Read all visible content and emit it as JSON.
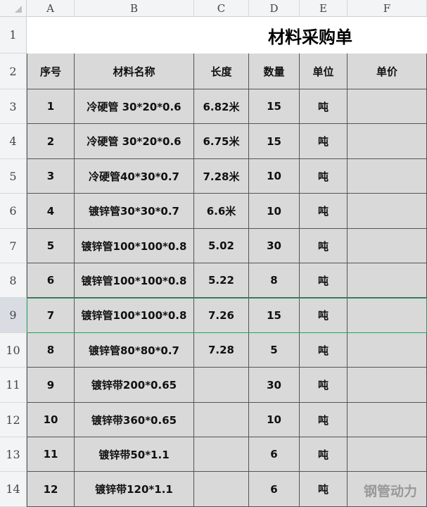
{
  "columns": [
    "A",
    "B",
    "C",
    "D",
    "E",
    "F"
  ],
  "rows": [
    "1",
    "2",
    "3",
    "4",
    "5",
    "6",
    "7",
    "8",
    "9",
    "10",
    "11",
    "12",
    "13",
    "14"
  ],
  "title": "材料采购单",
  "headers": [
    "序号",
    "材料名称",
    "长度",
    "数量",
    "单位",
    "单价"
  ],
  "data": [
    [
      "1",
      "冷硬管 30*20*0.6",
      "6.82米",
      "15",
      "吨",
      ""
    ],
    [
      "2",
      "冷硬管 30*20*0.6",
      "6.75米",
      "15",
      "吨",
      ""
    ],
    [
      "3",
      "冷硬管40*30*0.7",
      "7.28米",
      "10",
      "吨",
      ""
    ],
    [
      "4",
      "镀锌管30*30*0.7",
      "6.6米",
      "10",
      "吨",
      ""
    ],
    [
      "5",
      "镀锌管100*100*0.8",
      "5.02",
      "30",
      "吨",
      ""
    ],
    [
      "6",
      "镀锌管100*100*0.8",
      "5.22",
      "8",
      "吨",
      ""
    ],
    [
      "7",
      "镀锌管100*100*0.8",
      "7.26",
      "15",
      "吨",
      ""
    ],
    [
      "8",
      "镀锌管80*80*0.7",
      "7.28",
      "5",
      "吨",
      ""
    ],
    [
      "9",
      "镀锌带200*0.65",
      "",
      "30",
      "吨",
      ""
    ],
    [
      "10",
      "镀锌带360*0.65",
      "",
      "10",
      "吨",
      ""
    ],
    [
      "11",
      "镀锌带50*1.1",
      "",
      "6",
      "吨",
      ""
    ],
    [
      "12",
      "镀锌带120*1.1",
      "",
      "6",
      "吨",
      ""
    ]
  ],
  "selected_row": "9",
  "watermark": "钢管动力"
}
